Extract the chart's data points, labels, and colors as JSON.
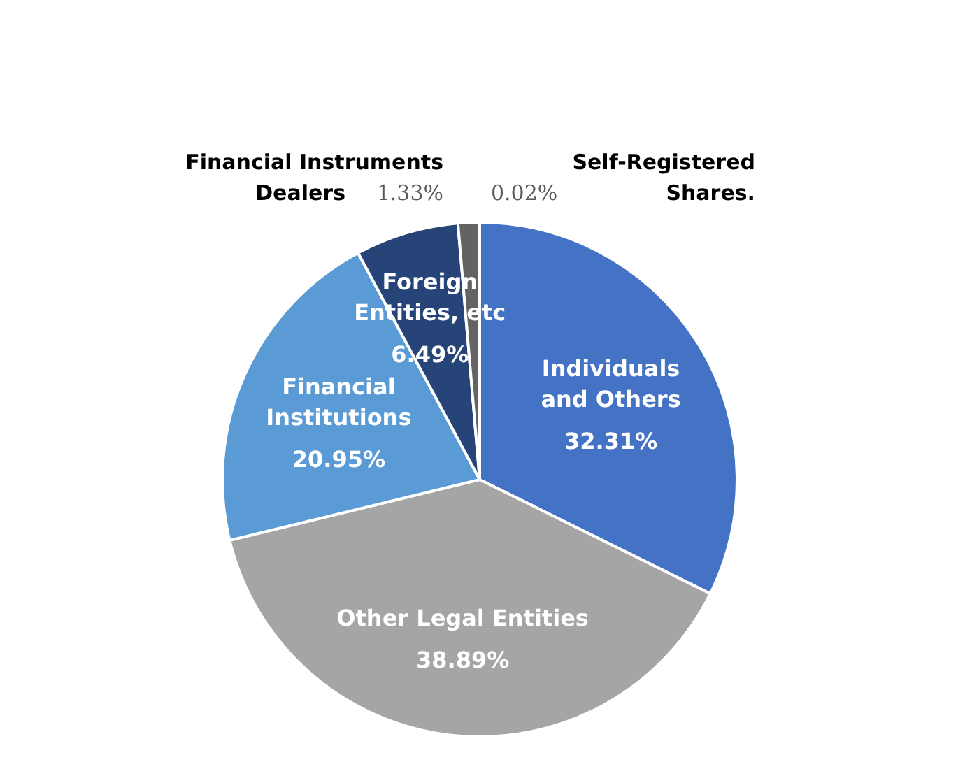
{
  "chart_data": {
    "type": "pie",
    "categories": [
      "Individuals\nand Others",
      "Other Legal Entities",
      "Financial\nInstitutions",
      "Foreign\nEntities, etc",
      "Financial Instruments\nDealers",
      "Self-Registered\nShares."
    ],
    "values": [
      32.31,
      38.89,
      20.95,
      6.49,
      1.33,
      0.02
    ],
    "colors": [
      "#4472c4",
      "#a5a5a5",
      "#5b9bd5",
      "#264478",
      "#636363",
      "#255e91"
    ],
    "data_labels": true,
    "legend": false,
    "value_labels": [
      "32.31%",
      "38.89%",
      "20.95%",
      "6.49%",
      "1.33%",
      "0.02%"
    ]
  }
}
